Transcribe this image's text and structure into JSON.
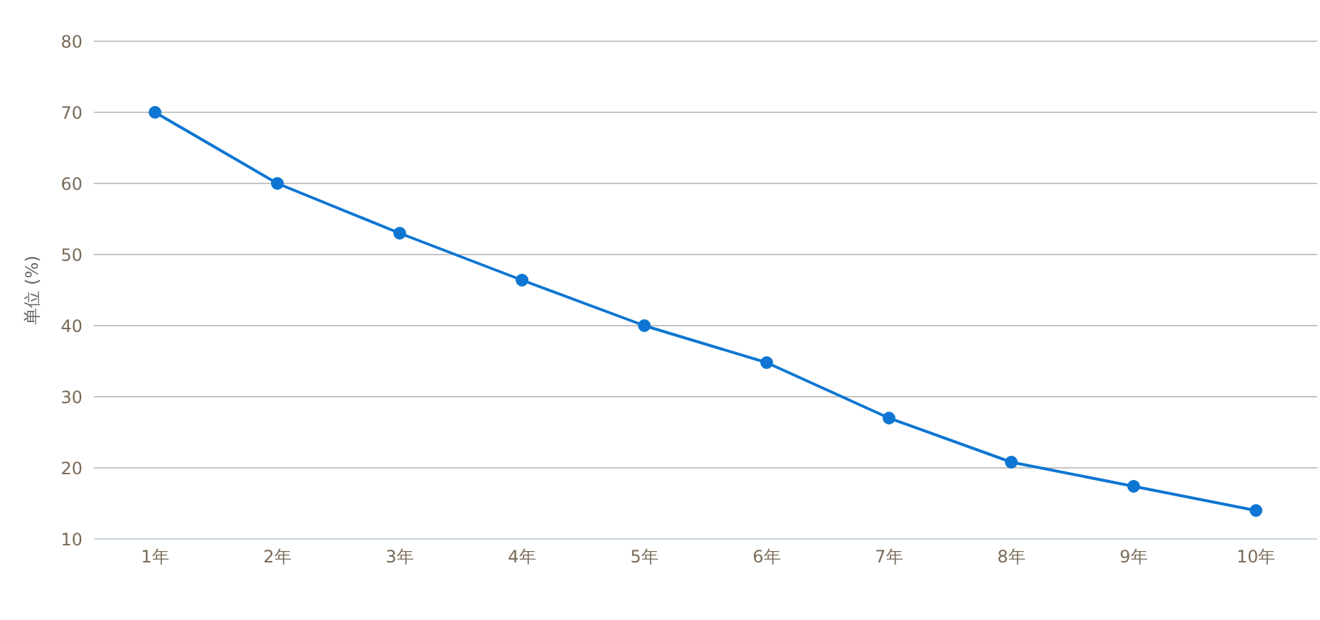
{
  "chart_data": {
    "type": "line",
    "ylabel": "单位 (%)",
    "categories": [
      "1年",
      "2年",
      "3年",
      "4年",
      "5年",
      "6年",
      "7年",
      "8年",
      "9年",
      "10年"
    ],
    "series": [
      {
        "color": "#0e76d2",
        "values": [
          70,
          60,
          53,
          46.4,
          40,
          34.8,
          27,
          20.8,
          17.4,
          14
        ]
      }
    ],
    "ylim": [
      10,
      80
    ],
    "yticks": [
      10,
      20,
      30,
      40,
      50,
      60,
      70,
      80
    ],
    "grid": "y",
    "marker": "circle",
    "line_style": "solid"
  }
}
